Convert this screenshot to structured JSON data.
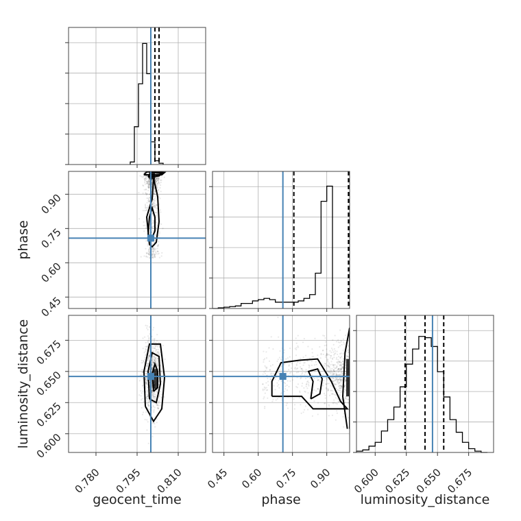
{
  "chart_data": {
    "type": "corner",
    "parameters": [
      {
        "name": "geocent_time",
        "label": "geocent_time",
        "range": [
          0.77,
          0.82
        ],
        "ticks": [
          "0.780",
          "0.795",
          "0.810"
        ],
        "tick_values": [
          0.78,
          0.795,
          0.81
        ],
        "truth": 0.8,
        "quantiles": [
          0.8,
          0.8015,
          0.803
        ]
      },
      {
        "name": "phase",
        "label": "phase",
        "range": [
          0.4,
          1.0
        ],
        "ticks": [
          "0.45",
          "0.60",
          "0.75",
          "0.90"
        ],
        "tick_values": [
          0.45,
          0.6,
          0.75,
          0.9
        ],
        "truth": 0.708,
        "quantiles": [
          0.756,
          0.995,
          0.998
        ]
      },
      {
        "name": "luminosity_distance",
        "label": "luminosity_distance",
        "range": [
          0.585,
          0.695
        ],
        "ticks": [
          "0.600",
          "0.625",
          "0.650",
          "0.675"
        ],
        "tick_values": [
          0.6,
          0.625,
          0.65,
          0.675
        ],
        "truth": 0.646,
        "quantiles": [
          0.624,
          0.64,
          0.655
        ]
      }
    ],
    "histograms": {
      "geocent_time": {
        "bin_start": 0.7925,
        "bin_width": 0.0015,
        "ymax": 1.0,
        "counts": [
          0.02,
          0.3,
          0.64,
          0.96,
          0.72,
          0.18,
          0.03,
          0.01
        ]
      },
      "phase": {
        "bin_start": 0.4,
        "bin_width": 0.025,
        "ymax": 1.0,
        "counts": [
          0.0,
          0.005,
          0.01,
          0.015,
          0.02,
          0.04,
          0.04,
          0.06,
          0.07,
          0.08,
          0.07,
          0.05,
          0.05,
          0.05,
          0.05,
          0.06,
          0.08,
          0.11,
          0.28,
          0.85,
          0.97
        ]
      },
      "luminosity_distance": {
        "bin_start": 0.585,
        "bin_width": 0.005,
        "ymax": 1.0,
        "counts": [
          0.01,
          0.02,
          0.05,
          0.08,
          0.17,
          0.26,
          0.36,
          0.52,
          0.7,
          0.82,
          0.92,
          0.91,
          0.84,
          0.64,
          0.44,
          0.26,
          0.16,
          0.08,
          0.03,
          0.01,
          0.0
        ]
      }
    },
    "pairs": [
      {
        "x": "geocent_time",
        "y": "phase",
        "contours": [
          [
            [
              0.799,
              0.975
            ],
            [
              0.803,
              0.98
            ],
            [
              0.804,
              0.99
            ],
            [
              0.8,
              0.998
            ],
            [
              0.799,
              0.975
            ]
          ],
          [
            [
              0.7975,
              0.985
            ],
            [
              0.804,
              0.985
            ],
            [
              0.805,
              0.995
            ],
            [
              0.7985,
              0.998
            ],
            [
              0.7975,
              0.985
            ]
          ],
          [
            [
              0.799,
              0.72
            ],
            [
              0.7995,
              0.8
            ],
            [
              0.8005,
              0.84
            ],
            [
              0.8015,
              0.8
            ],
            [
              0.8015,
              0.74
            ],
            [
              0.8005,
              0.71
            ],
            [
              0.799,
              0.72
            ]
          ],
          [
            [
              0.7995,
              0.68
            ],
            [
              0.7985,
              0.8
            ],
            [
              0.8005,
              0.88
            ],
            [
              0.801,
              0.97
            ],
            [
              0.8025,
              0.89
            ],
            [
              0.803,
              0.78
            ],
            [
              0.802,
              0.69
            ],
            [
              0.8005,
              0.67
            ],
            [
              0.7995,
              0.68
            ]
          ]
        ],
        "truth": [
          0.8,
          0.708
        ]
      },
      {
        "x": "geocent_time",
        "y": "luminosity_distance",
        "contours": [
          [
            [
              0.801,
              0.634
            ],
            [
              0.8005,
              0.648
            ],
            [
              0.8015,
              0.656
            ],
            [
              0.8025,
              0.65
            ],
            [
              0.8025,
              0.637
            ],
            [
              0.801,
              0.634
            ]
          ],
          [
            [
              0.7995,
              0.628
            ],
            [
              0.799,
              0.65
            ],
            [
              0.8005,
              0.665
            ],
            [
              0.803,
              0.662
            ],
            [
              0.8035,
              0.64
            ],
            [
              0.802,
              0.625
            ],
            [
              0.7995,
              0.628
            ]
          ],
          [
            [
              0.798,
              0.622
            ],
            [
              0.7975,
              0.65
            ],
            [
              0.7995,
              0.672
            ],
            [
              0.8035,
              0.672
            ],
            [
              0.805,
              0.645
            ],
            [
              0.804,
              0.62
            ],
            [
              0.801,
              0.61
            ],
            [
              0.798,
              0.622
            ]
          ]
        ],
        "truth": [
          0.8,
          0.646
        ]
      },
      {
        "x": "phase",
        "y": "luminosity_distance",
        "contours": [
          [
            [
              0.83,
              0.628
            ],
            [
              0.84,
              0.642
            ],
            [
              0.82,
              0.65
            ],
            [
              0.86,
              0.652
            ],
            [
              0.88,
              0.644
            ],
            [
              0.87,
              0.632
            ],
            [
              0.83,
              0.628
            ]
          ],
          [
            [
              0.66,
              0.63
            ],
            [
              0.66,
              0.642
            ],
            [
              0.7,
              0.657
            ],
            [
              0.78,
              0.659
            ],
            [
              0.86,
              0.66
            ],
            [
              0.92,
              0.642
            ],
            [
              0.96,
              0.626
            ],
            [
              0.99,
              0.62
            ],
            [
              0.9,
              0.62
            ],
            [
              0.84,
              0.62
            ],
            [
              0.79,
              0.63
            ],
            [
              0.66,
              0.63
            ]
          ],
          [
            [
              0.99,
              0.604
            ],
            [
              0.97,
              0.63
            ],
            [
              0.98,
              0.665
            ],
            [
              1.0,
              0.685
            ],
            [
              1.0,
              0.604
            ]
          ]
        ],
        "truth": [
          0.708,
          0.646
        ]
      }
    ]
  },
  "colors": {
    "truth": "#4682b4",
    "contour": "#000000",
    "grid": "#b0b0b0"
  }
}
